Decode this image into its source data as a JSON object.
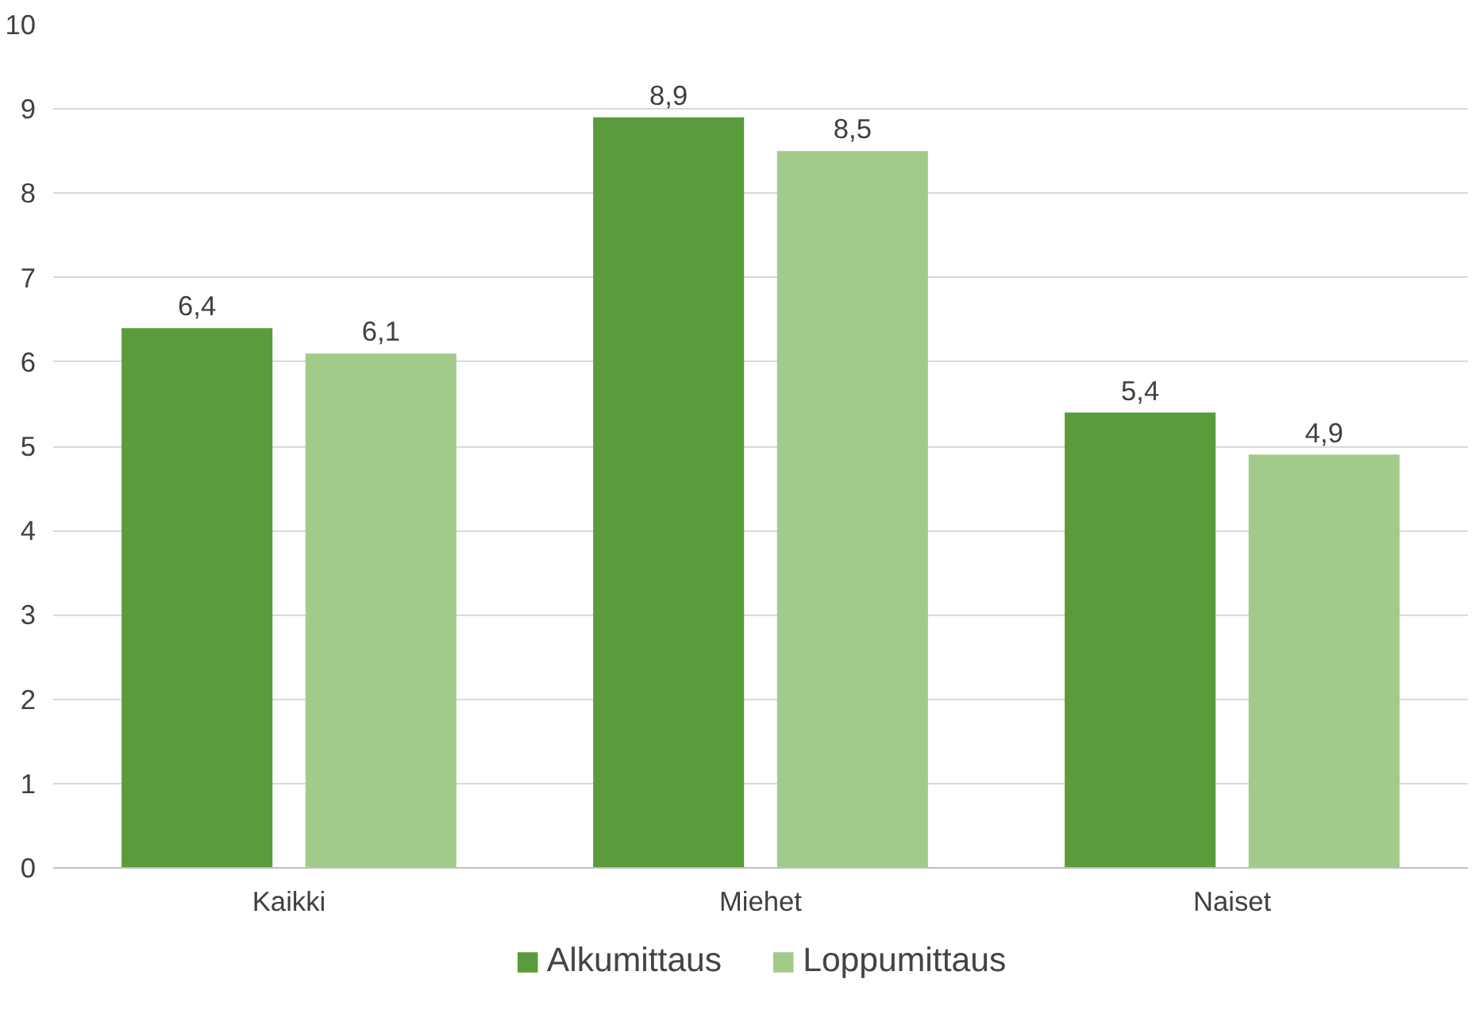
{
  "chart_data": {
    "type": "bar",
    "categories": [
      "Kaikki",
      "Miehet",
      "Naiset"
    ],
    "series": [
      {
        "name": "Alkumittaus",
        "color": "#5b9b3b",
        "values": [
          6.4,
          8.9,
          5.4
        ],
        "value_labels": [
          "6,4",
          "8,9",
          "5,4"
        ]
      },
      {
        "name": "Loppumittaus",
        "color": "#a2ca8b",
        "values": [
          6.1,
          8.5,
          4.9
        ],
        "value_labels": [
          "6,1",
          "8,5",
          "4,9"
        ]
      }
    ],
    "ylim": [
      0,
      10
    ],
    "yticks": [
      0,
      1,
      2,
      3,
      4,
      5,
      6,
      7,
      8,
      9,
      10
    ],
    "grid": "y",
    "legend": "bottom"
  }
}
